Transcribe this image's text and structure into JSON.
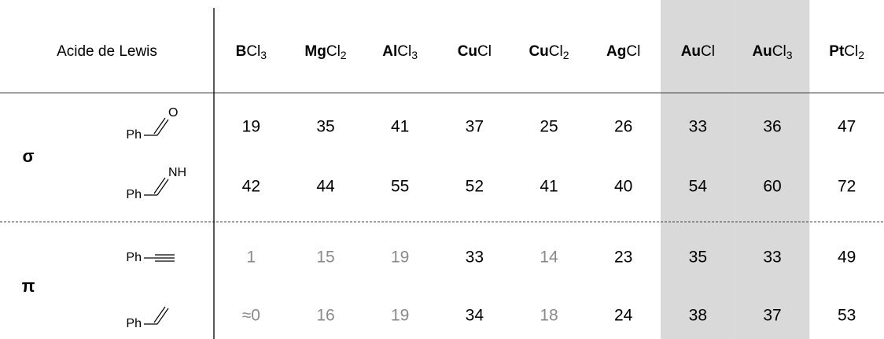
{
  "table": {
    "header": {
      "label": "Acide de Lewis",
      "columns": [
        {
          "metal": "B",
          "rest": "Cl",
          "sub": "3"
        },
        {
          "metal": "Mg",
          "rest": "Cl",
          "sub": "2"
        },
        {
          "metal": "Al",
          "rest": "Cl",
          "sub": "3"
        },
        {
          "metal": "Cu",
          "rest": "Cl"
        },
        {
          "metal": "Cu",
          "rest": "Cl",
          "sub": "2"
        },
        {
          "metal": "Ag",
          "rest": "Cl"
        },
        {
          "metal": "Au",
          "rest": "Cl"
        },
        {
          "metal": "Au",
          "rest": "Cl",
          "sub": "3"
        },
        {
          "metal": "Pt",
          "rest": "Cl",
          "sub": "2"
        }
      ]
    },
    "highlight_columns": [
      6,
      7
    ],
    "groups": [
      {
        "symbol": "σ",
        "rows": [
          {
            "substituent": "Ph",
            "atom": "O",
            "values": [
              19,
              35,
              41,
              37,
              25,
              26,
              33,
              36,
              47
            ],
            "muted": []
          },
          {
            "substituent": "Ph",
            "atom": "NH",
            "values": [
              42,
              44,
              55,
              52,
              41,
              40,
              54,
              60,
              72
            ],
            "muted": []
          }
        ]
      },
      {
        "symbol": "π",
        "rows": [
          {
            "substituent": "Ph",
            "values": [
              1,
              15,
              19,
              33,
              14,
              23,
              35,
              33,
              49
            ],
            "muted": [
              0,
              1,
              2,
              4
            ]
          },
          {
            "substituent": "Ph",
            "values": [
              "≈0",
              16,
              19,
              34,
              18,
              24,
              38,
              37,
              53
            ],
            "muted": [
              0,
              1,
              2,
              4
            ]
          }
        ]
      }
    ]
  }
}
